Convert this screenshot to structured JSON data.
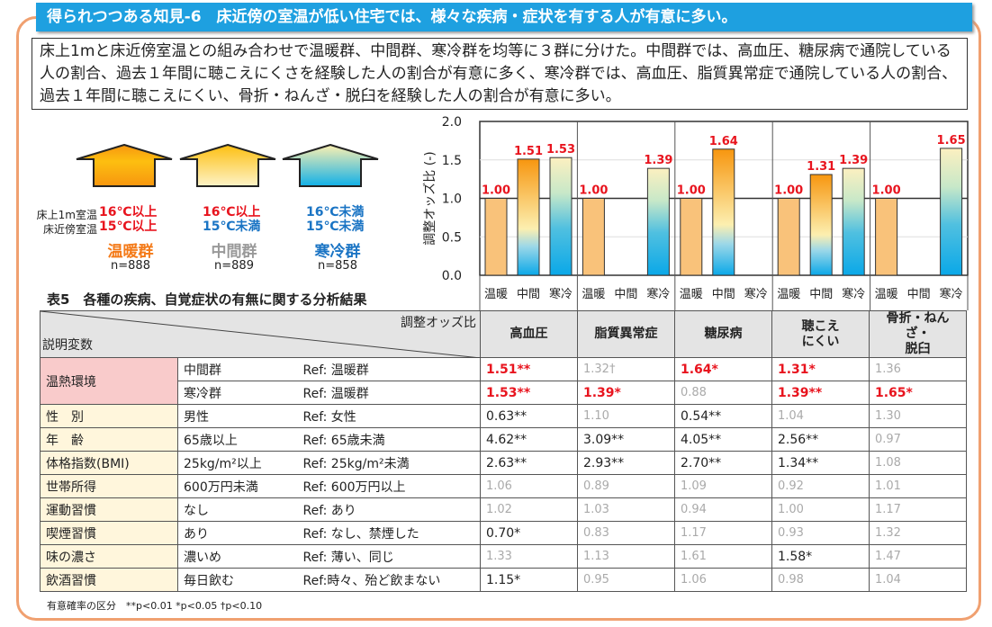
{
  "title": "得られつつある知見-6　床近傍の室温が低い住宅では、様々な疾病・症状を有する人が有意に多い。",
  "description": "床上1mと床近傍室温との組み合わせで温暖群、中間群、寒冷群を均等に３群に分けた。中間群では、高血圧、糖尿病で通院している人の割合、過去１年間に聴こえにくさを経験した人の割合が有意に多く、寒冷群では、高血圧、脂質異常症で通院している人の割合、過去１年間に聴こえにくい、骨折・ねんざ・脱臼を経験した人の割合が有意に多い。",
  "groups": {
    "label_1m": "床上1m室温",
    "label_floor": "床近傍室温",
    "items": [
      {
        "t1": "16℃以上",
        "t2": "15℃以上",
        "name": "温暖群",
        "n": "n=888"
      },
      {
        "t1": "16℃以上",
        "t2": "15℃未満",
        "name": "中間群",
        "n": "n=889"
      },
      {
        "t1": "16℃未満",
        "t2": "15℃未満",
        "name": "寒冷群",
        "n": "n=858"
      }
    ]
  },
  "chart_data": {
    "type": "bar",
    "ylabel": "調整オッズ比 (-)",
    "ylim": [
      0,
      2.0
    ],
    "yticks": [
      "0.0",
      "0.5",
      "1.0",
      "1.5",
      "2.0"
    ],
    "categories": [
      "温暖",
      "中間",
      "寒冷"
    ],
    "groups": [
      "高血圧",
      "脂質異常症",
      "糖尿病",
      "聴こえにくい",
      "骨折・ねんざ・脱臼"
    ],
    "values": [
      [
        1.0,
        1.51,
        1.53
      ],
      [
        1.0,
        null,
        1.39
      ],
      [
        1.0,
        1.64,
        null
      ],
      [
        1.0,
        1.31,
        1.39
      ],
      [
        1.0,
        null,
        1.65
      ]
    ],
    "labels": [
      [
        "1.00",
        "1.51",
        "1.53"
      ],
      [
        "1.00",
        "",
        "1.39"
      ],
      [
        "1.00",
        "1.64",
        ""
      ],
      [
        "1.00",
        "1.31",
        "1.39"
      ],
      [
        "1.00",
        "",
        "1.65"
      ]
    ],
    "colors": {
      "warm": "#f9c27a",
      "mid_top": "#f7960f",
      "mid_mid": "#fcefb0",
      "bottom": "#0aa8e8",
      "cold_top": "#fcf0c0"
    }
  },
  "table": {
    "title": "表5　各種の疾病、自覚症状の有無に関する分析結果",
    "corner_top": "調整オッズ比",
    "corner_bottom": "説明変数",
    "headers": [
      "高血圧",
      "脂質異常症",
      "糖尿病",
      "聴こえ\nにくい",
      "骨折・ねんざ・\n脱臼"
    ],
    "rows": [
      {
        "cat": "温熱環境",
        "var": "中間群",
        "ref": "Ref: 温暖群",
        "cells": [
          {
            "v": "1.51**",
            "s": "sig"
          },
          {
            "v": "1.32†",
            "s": "ns"
          },
          {
            "v": "1.64*",
            "s": "sig"
          },
          {
            "v": "1.31*",
            "s": "sig"
          },
          {
            "v": "1.36",
            "s": "ns"
          }
        ]
      },
      {
        "cat": "",
        "var": "寒冷群",
        "ref": "Ref: 温暖群",
        "cells": [
          {
            "v": "1.53**",
            "s": "sig"
          },
          {
            "v": "1.39*",
            "s": "sig"
          },
          {
            "v": "0.88",
            "s": "ns"
          },
          {
            "v": "1.39**",
            "s": "sig"
          },
          {
            "v": "1.65*",
            "s": "sig"
          }
        ]
      },
      {
        "cat": "性　別",
        "var": "男性",
        "ref": "Ref: 女性",
        "cells": [
          {
            "v": "0.63**",
            "s": ""
          },
          {
            "v": "1.10",
            "s": "ns"
          },
          {
            "v": "0.54**",
            "s": ""
          },
          {
            "v": "1.04",
            "s": "ns"
          },
          {
            "v": "1.30",
            "s": "ns"
          }
        ]
      },
      {
        "cat": "年　齢",
        "var": "65歳以上",
        "ref": "Ref: 65歳未満",
        "cells": [
          {
            "v": "4.62**",
            "s": ""
          },
          {
            "v": "3.09**",
            "s": ""
          },
          {
            "v": "4.05**",
            "s": ""
          },
          {
            "v": "2.56**",
            "s": ""
          },
          {
            "v": "0.97",
            "s": "ns"
          }
        ]
      },
      {
        "cat": "体格指数(BMI)",
        "var": "25kg/m²以上",
        "ref": "Ref: 25kg/m²未満",
        "cells": [
          {
            "v": "2.63**",
            "s": ""
          },
          {
            "v": "2.93**",
            "s": ""
          },
          {
            "v": "2.70**",
            "s": ""
          },
          {
            "v": "1.34**",
            "s": ""
          },
          {
            "v": "1.08",
            "s": "ns"
          }
        ]
      },
      {
        "cat": "世帯所得",
        "var": "600万円未満",
        "ref": "Ref: 600万円以上",
        "cells": [
          {
            "v": "1.06",
            "s": "ns"
          },
          {
            "v": "0.89",
            "s": "ns"
          },
          {
            "v": "1.09",
            "s": "ns"
          },
          {
            "v": "0.92",
            "s": "ns"
          },
          {
            "v": "1.01",
            "s": "ns"
          }
        ]
      },
      {
        "cat": "運動習慣",
        "var": "なし",
        "ref": "Ref: あり",
        "cells": [
          {
            "v": "1.02",
            "s": "ns"
          },
          {
            "v": "1.03",
            "s": "ns"
          },
          {
            "v": "0.94",
            "s": "ns"
          },
          {
            "v": "1.00",
            "s": "ns"
          },
          {
            "v": "1.17",
            "s": "ns"
          }
        ]
      },
      {
        "cat": "喫煙習慣",
        "var": "あり",
        "ref": "Ref: なし、禁煙した",
        "cells": [
          {
            "v": "0.70*",
            "s": ""
          },
          {
            "v": "0.83",
            "s": "ns"
          },
          {
            "v": "1.17",
            "s": "ns"
          },
          {
            "v": "0.93",
            "s": "ns"
          },
          {
            "v": "1.32",
            "s": "ns"
          }
        ]
      },
      {
        "cat": "味の濃さ",
        "var": "濃いめ",
        "ref": "Ref: 薄い、同じ",
        "cells": [
          {
            "v": "1.33",
            "s": "ns"
          },
          {
            "v": "1.13",
            "s": "ns"
          },
          {
            "v": "1.61",
            "s": "ns"
          },
          {
            "v": "1.58*",
            "s": ""
          },
          {
            "v": "1.47",
            "s": "ns"
          }
        ]
      },
      {
        "cat": "飲酒習慣",
        "var": "毎日飲む",
        "ref": "Ref:時々、殆ど飲まない",
        "cells": [
          {
            "v": "1.15*",
            "s": ""
          },
          {
            "v": "0.95",
            "s": "ns"
          },
          {
            "v": "1.06",
            "s": "ns"
          },
          {
            "v": "0.98",
            "s": "ns"
          },
          {
            "v": "1.04",
            "s": "ns"
          }
        ]
      }
    ],
    "footnote": "有意確率の区分　**p<0.01 *p<0.05 †p<0.10"
  }
}
